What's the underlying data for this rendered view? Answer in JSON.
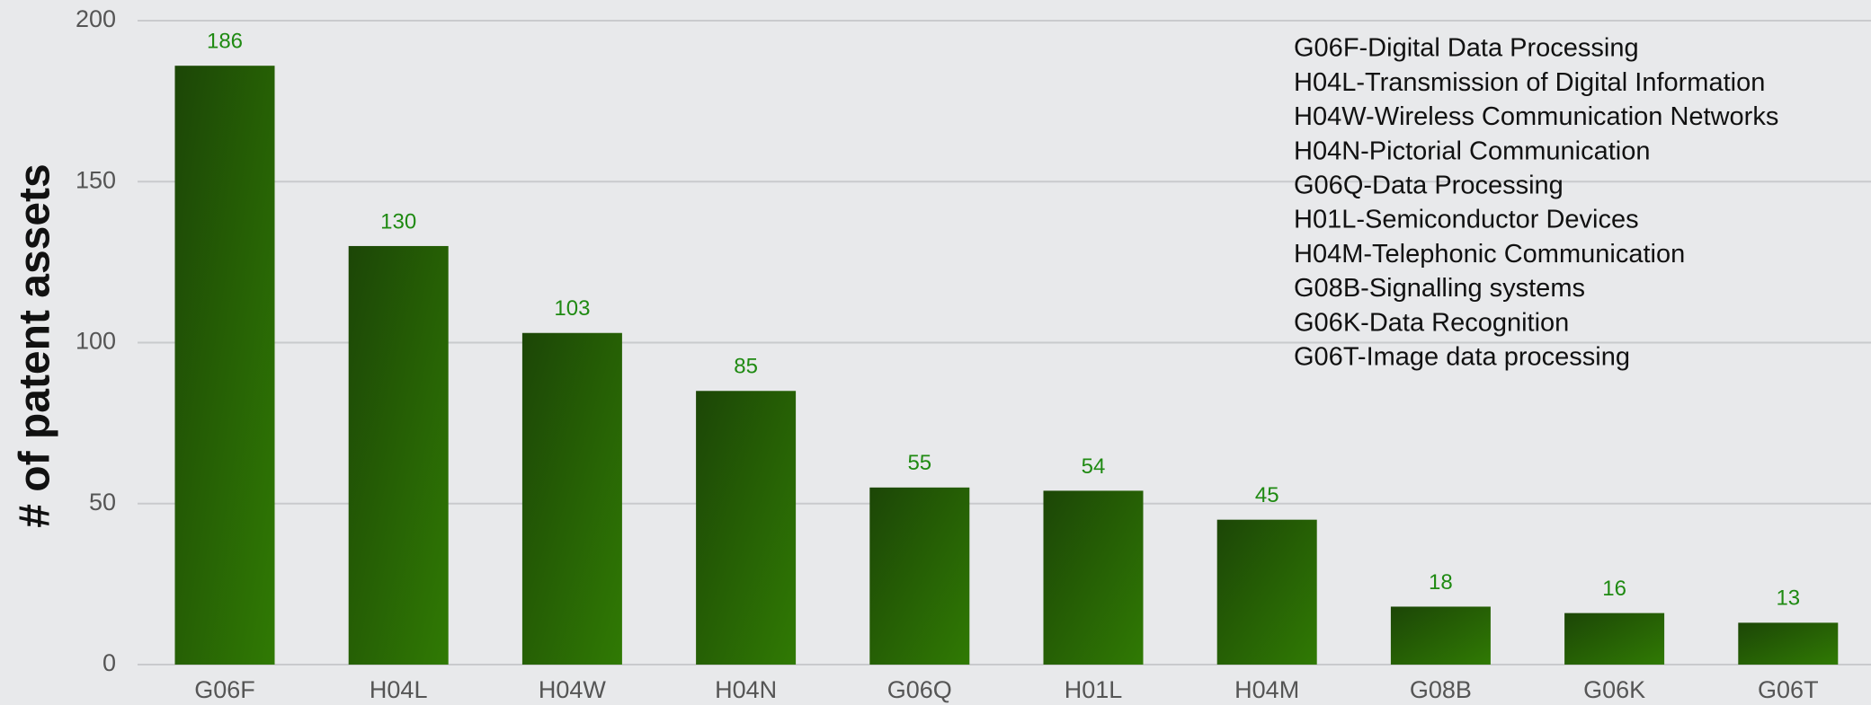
{
  "chart_data": {
    "type": "bar",
    "y_label": "# of patent assets",
    "categories": [
      "G06F",
      "H04L",
      "H04W",
      "H04N",
      "G06Q",
      "H01L",
      "H04M",
      "G08B",
      "G06K",
      "G06T"
    ],
    "values": [
      186,
      130,
      103,
      85,
      55,
      54,
      45,
      18,
      16,
      13
    ],
    "color": "#2a6a06",
    "ylim": [
      0,
      200
    ],
    "yticks": [
      0,
      50,
      100,
      150,
      200
    ],
    "grid": true,
    "annotations": [
      "G06F-Digital Data Processing",
      "H04L-Transmission of Digital Information",
      "H04W-Wireless Communication Networks",
      "H04N-Pictorial Communication",
      "G06Q-Data Processing",
      "H01L-Semiconductor Devices",
      "H04M-Telephonic Communication",
      "G08B-Signalling systems",
      "G06K-Data Recognition",
      "G06T-Image data processing"
    ]
  }
}
